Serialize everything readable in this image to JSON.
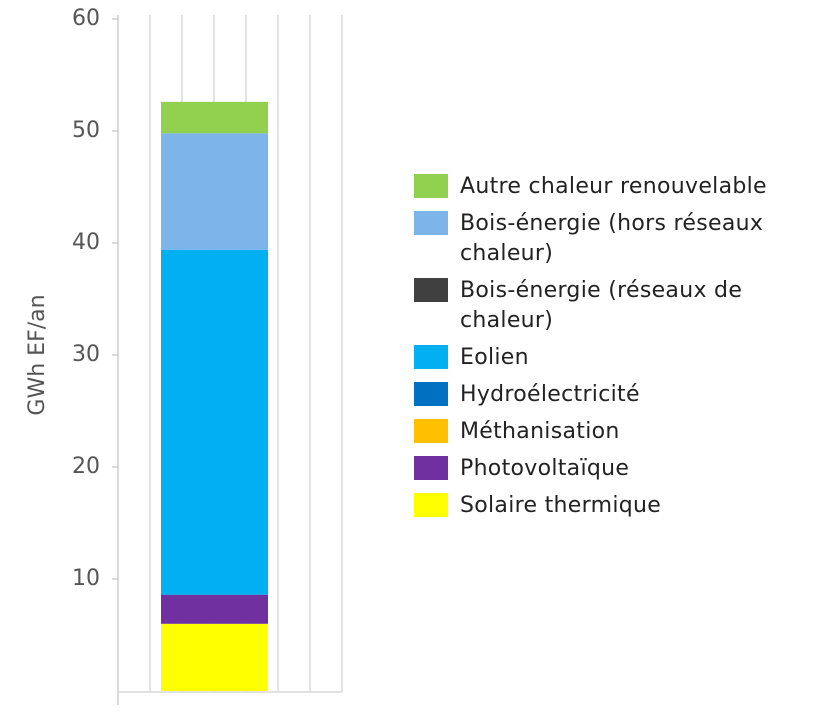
{
  "chart_data": {
    "type": "stacked_bar",
    "y_label": "GWh EF/an",
    "categories": [
      null
    ],
    "series": [
      {
        "name": "Autre chaleur renouvelable",
        "color": "#92d050",
        "values": [
          2.8
        ]
      },
      {
        "name": "Bois-énergie (hors réseaux chaleur)",
        "color": "#7db4ea",
        "values": [
          10.4
        ]
      },
      {
        "name": "Bois-énergie (réseaux de chaleur)",
        "color": "#404040",
        "values": [
          0
        ]
      },
      {
        "name": "Eolien",
        "color": "#00b0f0",
        "values": [
          30.8
        ]
      },
      {
        "name": "Hydroélectricité",
        "color": "#0070c0",
        "values": [
          0
        ]
      },
      {
        "name": "Méthanisation",
        "color": "#ffc000",
        "values": [
          0
        ]
      },
      {
        "name": "Photovoltaïque",
        "color": "#7030a0",
        "values": [
          2.6
        ]
      },
      {
        "name": "Solaire thermique",
        "color": "#ffff00",
        "values": [
          6.0
        ]
      }
    ],
    "ylim": [
      0,
      60
    ],
    "yticks": [
      10,
      20,
      30,
      40,
      50,
      60
    ]
  }
}
